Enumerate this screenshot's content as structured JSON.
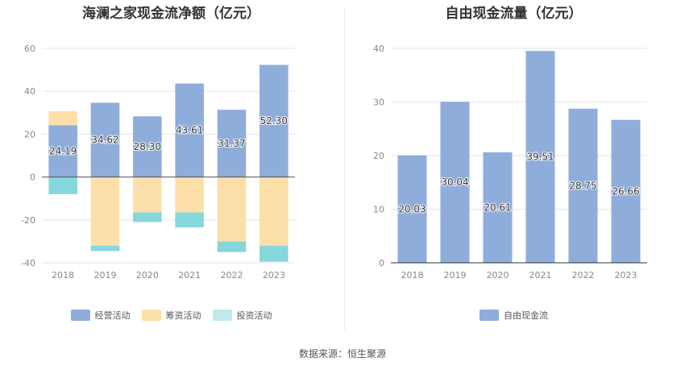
{
  "source_text": "数据来源：恒生聚源",
  "chart_data": [
    {
      "type": "bar",
      "stacked": true,
      "title": "海澜之家现金流净额（亿元）",
      "categories": [
        "2018",
        "2019",
        "2020",
        "2021",
        "2022",
        "2023"
      ],
      "ylim": [
        -40,
        60
      ],
      "yticks": [
        -40,
        -20,
        0,
        20,
        40,
        60
      ],
      "grid": true,
      "legend_position": "bottom",
      "series": [
        {
          "name": "经营活动",
          "color": "#8eadda",
          "values": [
            24.19,
            34.62,
            28.3,
            43.61,
            31.37,
            52.3
          ],
          "labels": [
            "24.19",
            "34.62",
            "28.30",
            "43.61",
            "31.37",
            "52.30"
          ]
        },
        {
          "name": "筹资活动",
          "color": "#fde0a9",
          "values": [
            6.5,
            -32.0,
            -16.5,
            -16.5,
            -30.0,
            -32.0
          ]
        },
        {
          "name": "投资活动",
          "color": "#86d7db",
          "values": [
            -8.0,
            -2.5,
            -4.5,
            -7.0,
            -5.0,
            -7.5
          ]
        }
      ]
    },
    {
      "type": "bar",
      "title": "自由现金流量（亿元）",
      "categories": [
        "2018",
        "2019",
        "2020",
        "2021",
        "2022",
        "2023"
      ],
      "ylim": [
        0,
        40
      ],
      "yticks": [
        0,
        10,
        20,
        30,
        40
      ],
      "grid": true,
      "legend_position": "bottom",
      "series": [
        {
          "name": "自由现金流",
          "color": "#8eadda",
          "values": [
            20.03,
            30.04,
            20.61,
            39.51,
            28.75,
            26.66
          ],
          "labels": [
            "20.03",
            "30.04",
            "20.61",
            "39.51",
            "28.75",
            "26.66"
          ]
        }
      ]
    }
  ]
}
